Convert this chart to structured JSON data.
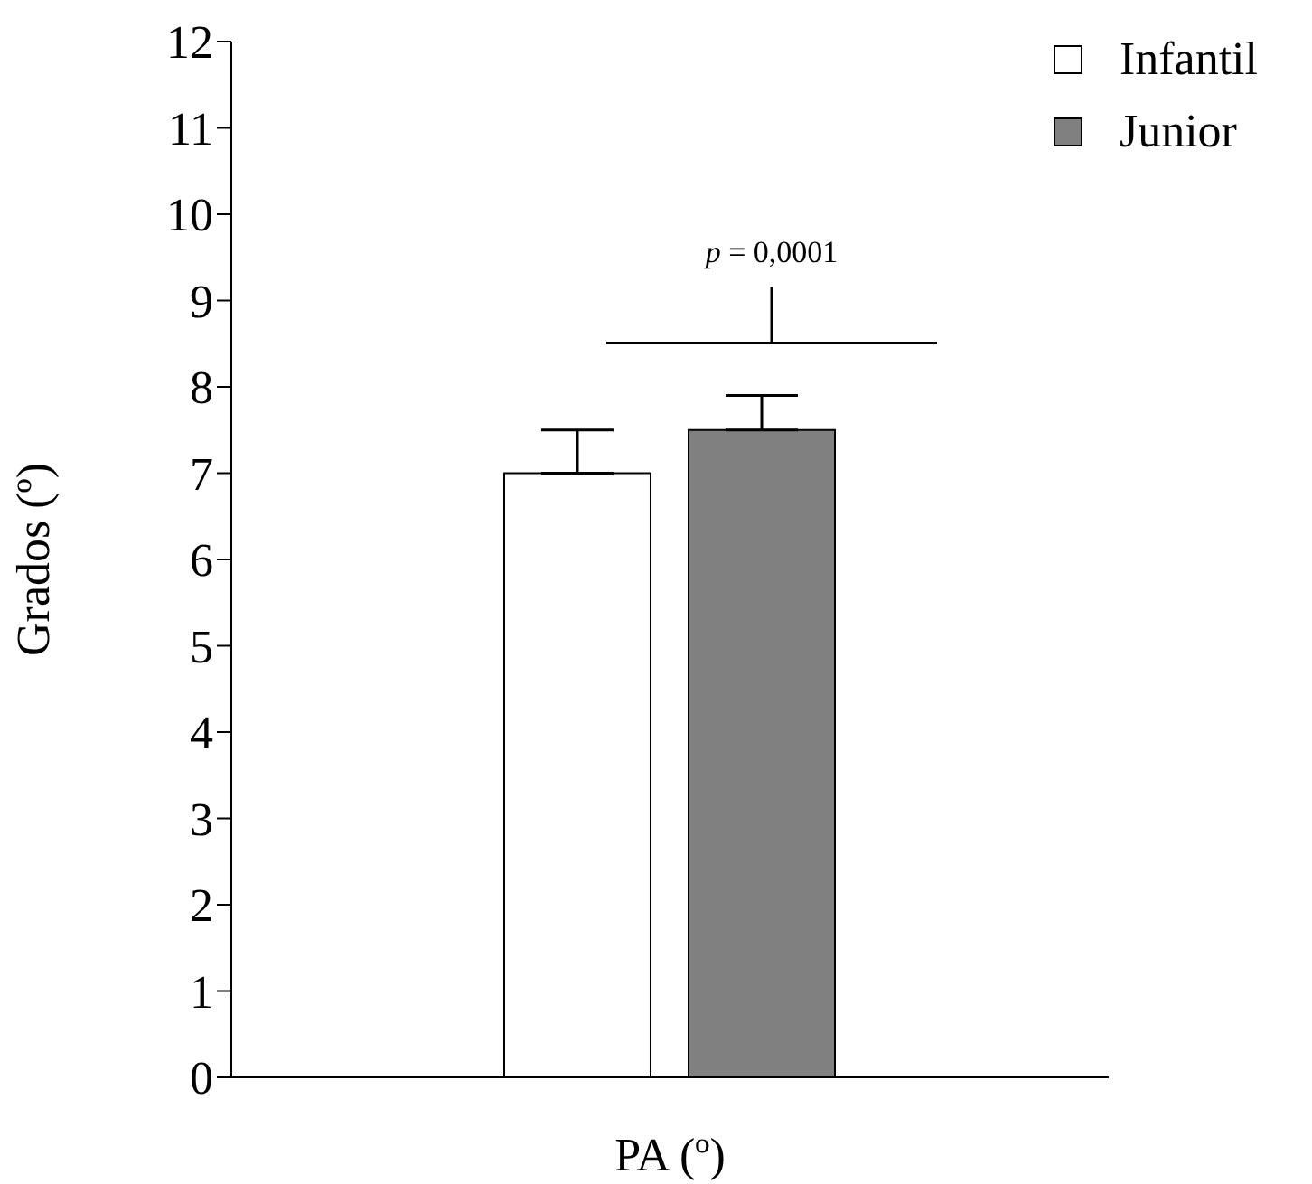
{
  "chart_data": {
    "type": "bar",
    "ylabel": "Grados (º)",
    "categories": [
      "PA (º)"
    ],
    "series": [
      {
        "name": "Infantil",
        "color": "#ffffff",
        "values": [
          7.0
        ],
        "errors": [
          [
            7.0,
            7.5
          ]
        ]
      },
      {
        "name": "Junior",
        "color": "#808080",
        "values": [
          7.5
        ],
        "errors": [
          [
            7.5,
            7.9
          ]
        ]
      }
    ],
    "ylim": [
      0,
      12
    ],
    "yticks": [
      0,
      1,
      2,
      3,
      4,
      5,
      6,
      7,
      8,
      9,
      10,
      11,
      12
    ],
    "grid": false,
    "legend": "top right",
    "annotations": [
      "p = 0,0001"
    ]
  }
}
